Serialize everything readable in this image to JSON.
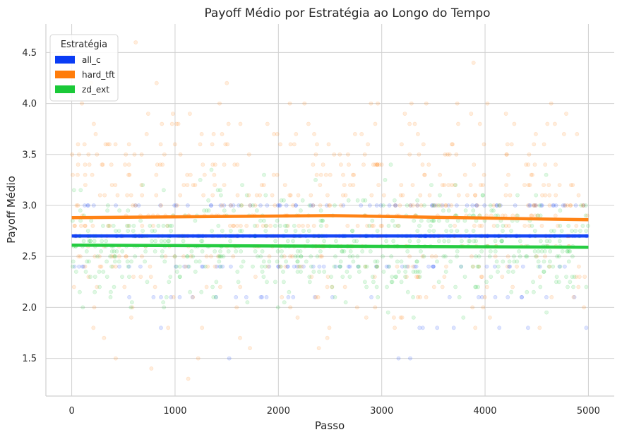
{
  "chart_data": {
    "type": "scatter",
    "title": "Payoff Médio por Estratégia ao Longo do Tempo",
    "xlabel": "Passo",
    "ylabel": "Payoff Médio",
    "xlim": [
      -250,
      5250
    ],
    "ylim": [
      1.13,
      4.78
    ],
    "xticks": [
      0,
      1000,
      2000,
      3000,
      4000,
      5000
    ],
    "yticks": [
      1.5,
      2.0,
      2.5,
      3.0,
      3.5,
      4.0,
      4.5
    ],
    "xtick_labels": [
      "0",
      "1000",
      "2000",
      "3000",
      "4000",
      "5000"
    ],
    "ytick_labels": [
      "1.5",
      "2.0",
      "2.5",
      "3.0",
      "3.5",
      "4.0",
      "4.5"
    ],
    "grid": true,
    "legend": {
      "title": "Estratégia",
      "placement": "top-left",
      "entries": [
        "all_c",
        "hard_tft",
        "zd_ext"
      ]
    },
    "series": [
      {
        "name": "all_c",
        "color": "#0a3cf5",
        "mean_line": {
          "x": [
            0,
            5000
          ],
          "y": [
            2.7,
            2.7
          ]
        },
        "levels": [
          1.5,
          1.8,
          2.1,
          2.4,
          2.7,
          3.0
        ],
        "level_weights": [
          1,
          3,
          10,
          20,
          40,
          26
        ],
        "points_per_level": 26
      },
      {
        "name": "hard_tft",
        "color": "#ff7c0a",
        "mean_line": {
          "x": [
            0,
            2500,
            5000
          ],
          "y": [
            2.88,
            2.9,
            2.86
          ]
        },
        "levels": [
          1.3,
          1.4,
          1.5,
          1.6,
          1.7,
          1.8,
          1.9,
          2.0,
          2.1,
          2.2,
          2.3,
          2.4,
          2.5,
          2.6,
          2.7,
          2.8,
          2.9,
          3.0,
          3.1,
          3.2,
          3.3,
          3.4,
          3.5,
          3.6,
          3.7,
          3.8,
          3.9,
          4.0,
          4.2,
          4.4,
          4.6
        ],
        "level_weights": [
          1,
          1,
          2,
          2,
          3,
          6,
          6,
          8,
          10,
          14,
          18,
          24,
          30,
          36,
          40,
          44,
          42,
          40,
          36,
          34,
          26,
          34,
          22,
          26,
          14,
          16,
          6,
          10,
          3,
          1,
          1
        ],
        "points_per_level": 12
      },
      {
        "name": "zd_ext",
        "color": "#1ac938",
        "mean_line": {
          "x": [
            0,
            5000
          ],
          "y": [
            2.61,
            2.59
          ]
        },
        "levels": [
          1.9,
          1.95,
          2.0,
          2.05,
          2.1,
          2.15,
          2.2,
          2.25,
          2.3,
          2.35,
          2.4,
          2.45,
          2.5,
          2.55,
          2.6,
          2.65,
          2.7,
          2.75,
          2.8,
          2.85,
          2.9,
          2.95,
          3.0,
          3.05,
          3.1,
          3.15,
          3.2,
          3.25,
          3.3,
          3.35,
          3.4
        ],
        "level_weights": [
          2,
          2,
          4,
          5,
          8,
          10,
          14,
          18,
          24,
          28,
          34,
          38,
          42,
          44,
          46,
          44,
          42,
          38,
          34,
          28,
          24,
          18,
          14,
          10,
          8,
          5,
          4,
          3,
          2,
          1,
          1
        ],
        "points_per_level": 12
      }
    ]
  }
}
